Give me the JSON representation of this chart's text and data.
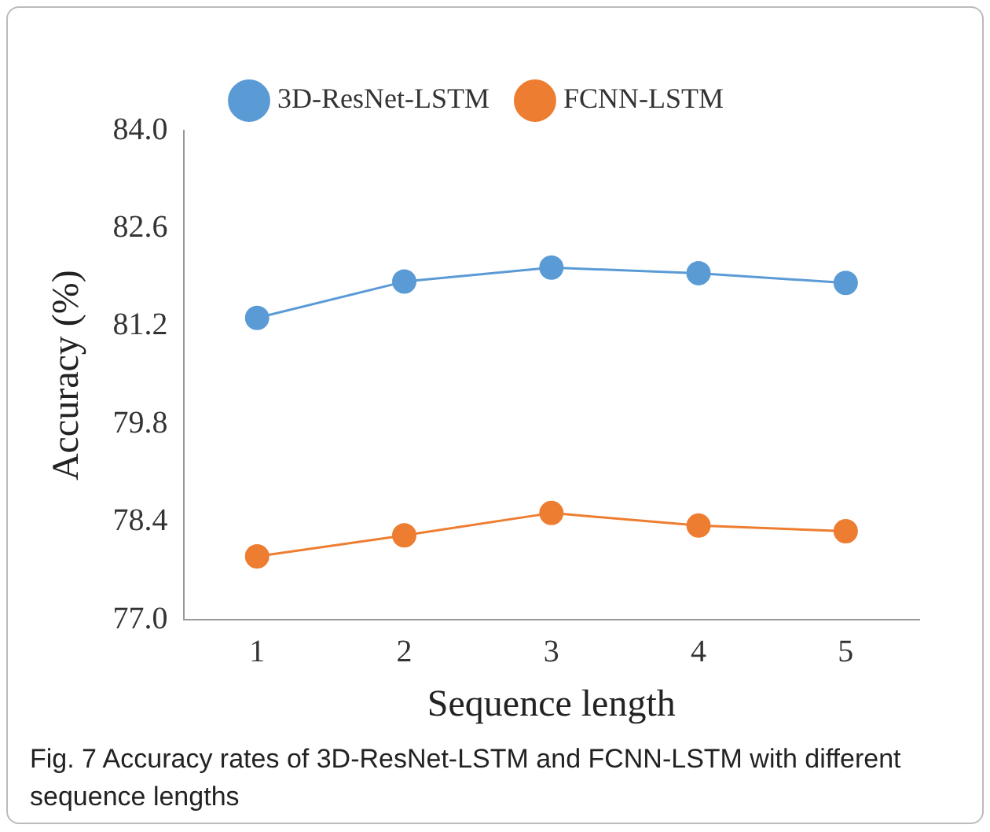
{
  "chart_data": {
    "type": "line",
    "xlabel": "Sequence length",
    "ylabel": "Accuracy (%)",
    "categories": [
      "1",
      "2",
      "3",
      "4",
      "5"
    ],
    "series": [
      {
        "name": "3D-ResNet-LSTM",
        "color": "#5b9bd5",
        "values": [
          81.32,
          81.84,
          82.04,
          81.96,
          81.82
        ]
      },
      {
        "name": "FCNN-LSTM",
        "color": "#ed7d31",
        "values": [
          77.91,
          78.21,
          78.53,
          78.35,
          78.27
        ]
      }
    ],
    "ylim": [
      77,
      84
    ],
    "yticks": [
      {
        "value": 77,
        "label": "77.0"
      },
      {
        "value": 78.4,
        "label": "78.4"
      },
      {
        "value": 79.8,
        "label": "79.8"
      },
      {
        "value": 81.2,
        "label": "81.2"
      },
      {
        "value": 82.6,
        "label": "82.6"
      },
      {
        "value": 84,
        "label": "84.0"
      }
    ],
    "grid": false,
    "legend": "top",
    "marker": "circle",
    "line_style": "solid",
    "annotations": [
      "Fig. 7  Accuracy rates of 3D-ResNet-LSTM and FCNN-LSTM with different sequence lengths"
    ]
  }
}
